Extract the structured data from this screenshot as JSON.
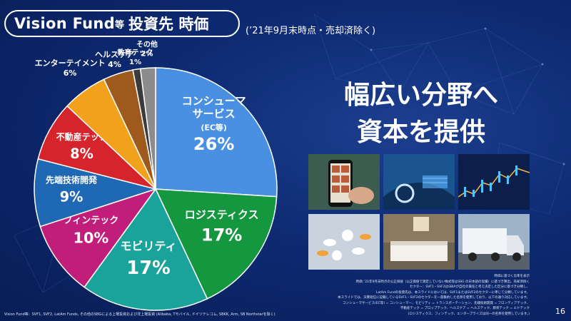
{
  "header": {
    "title_main": "Vision Fund",
    "title_small": "等",
    "title_jp": "投資先 時価",
    "subtitle": "(’21年9月末時点・売却済除く)"
  },
  "headline": [
    "幅広い分野へ",
    "資本を提供"
  ],
  "chart_data": {
    "type": "pie",
    "title": "Vision Fund等 投資先 時価",
    "unit": "%",
    "slices": [
      {
        "name": "コンシューマサービス(EC等)",
        "lines": [
          "コンシューマ",
          "サービス"
        ],
        "sub": "(EC等)",
        "value": 26,
        "color": "#4a90e2"
      },
      {
        "name": "ロジスティクス",
        "lines": [
          "ロジスティクス"
        ],
        "value": 17,
        "color": "#15973f"
      },
      {
        "name": "モビリティ",
        "lines": [
          "モビリティ"
        ],
        "value": 17,
        "color": "#1aa39a"
      },
      {
        "name": "フィンテック",
        "lines": [
          "フィンテック"
        ],
        "value": 10,
        "color": "#c11d7a"
      },
      {
        "name": "先端技術開発",
        "lines": [
          "先端技術開発"
        ],
        "value": 9,
        "color": "#1f68b3"
      },
      {
        "name": "不動産テック",
        "lines": [
          "不動産テック"
        ],
        "value": 8,
        "color": "#d5242b"
      },
      {
        "name": "エンターテイメント",
        "lines": [
          "エンターテイメント"
        ],
        "value": 6,
        "color": "#f2a11d"
      },
      {
        "name": "ヘルスケア",
        "lines": [
          "ヘルスケア"
        ],
        "value": 4,
        "color": "#9e5a1c"
      },
      {
        "name": "教育テック",
        "lines": [
          "教育テック"
        ],
        "value": 1,
        "color": "#3b3b3b"
      },
      {
        "name": "その他",
        "lines": [
          "その他"
        ],
        "value": 2,
        "color": "#8c8c8c"
      }
    ]
  },
  "photos": [
    {
      "name": "smartphone-shopping-photo",
      "bg": "#3b5c4e"
    },
    {
      "name": "autonomous-car-photo",
      "bg": "#1b5590"
    },
    {
      "name": "stock-chart-photo",
      "bg": "#0c1f4a"
    },
    {
      "name": "medicine-pills-photo",
      "bg": "#c9d3de"
    },
    {
      "name": "hotel-room-photo",
      "bg": "#6e6250"
    },
    {
      "name": "delivery-truck-photo",
      "bg": "#9fb3c8"
    }
  ],
  "notes": [
    "時価に基づく比率を表示",
    "時価：’21年9月末時点の公正価値（公正価値で測定していない株式等はSBG の日本語の実績）に基づき算出。売却済除く",
    "セクター：SVF1・SVF2はSBIAが自社の責任と考え決定した区分に基づき分類し、",
    "LatAm Fundの投資先は、本スライドにおいては、SVF1またはSVF2のセクターに準じて分類しています。",
    "本スライドでは、決算短信に記載しているSVF1・SVF2のセクターを一部集約した名称を使用しており、以下の通り対応しています。",
    "コンシューマサービス(EC等) = コンシューマー、モビリティ = トランスポーテーション、先端技術開発 = フロンティアテック、",
    "不動産テック = プロップテック、ヘルスケア = ヘルステック、教育テック = エドテック",
    "(ロジスティクス、フィンテック、エンタープライズは同一の名称を使用しています。)"
  ],
  "footnote": "Vision Fund等：SVF1, SVF2, LatAm Funds, その他のSBGによる上場投資および非上場投資 (Alibaba, Tモバイル, ドイツテレコム, SBKK, Arm, SB Northstarを除く)",
  "page_number": "16"
}
